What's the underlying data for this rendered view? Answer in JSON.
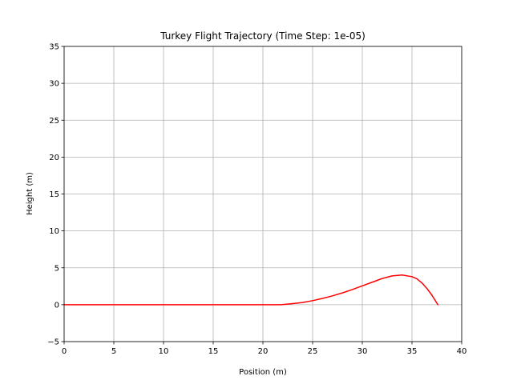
{
  "chart_data": {
    "type": "line",
    "title": "Turkey Flight Trajectory (Time Step: 1e-05)",
    "xlabel": "Position (m)",
    "ylabel": "Height (m)",
    "xlim": [
      0,
      40
    ],
    "ylim": [
      -5,
      35
    ],
    "x_ticks": [
      0,
      5,
      10,
      15,
      20,
      25,
      30,
      35,
      40
    ],
    "y_ticks": [
      -5,
      0,
      5,
      10,
      15,
      20,
      25,
      30,
      35
    ],
    "x_tick_labels": [
      "0",
      "5",
      "10",
      "15",
      "20",
      "25",
      "30",
      "35",
      "40"
    ],
    "y_tick_labels": [
      "−5",
      "0",
      "5",
      "10",
      "15",
      "20",
      "25",
      "30",
      "35"
    ],
    "grid": true,
    "series": [
      {
        "color": "#ff0000",
        "x": [
          0,
          5,
          10,
          15,
          20,
          21.8,
          23,
          24,
          25,
          26,
          27,
          28,
          29,
          30,
          31,
          32,
          33,
          34,
          35,
          35.5,
          36,
          36.5,
          37,
          37.3,
          37.6
        ],
        "y": [
          0,
          0,
          0,
          0,
          0,
          0,
          0.15,
          0.3,
          0.55,
          0.85,
          1.2,
          1.6,
          2.05,
          2.55,
          3.05,
          3.55,
          3.9,
          4.02,
          3.8,
          3.5,
          2.95,
          2.2,
          1.3,
          0.65,
          0
        ]
      }
    ]
  }
}
